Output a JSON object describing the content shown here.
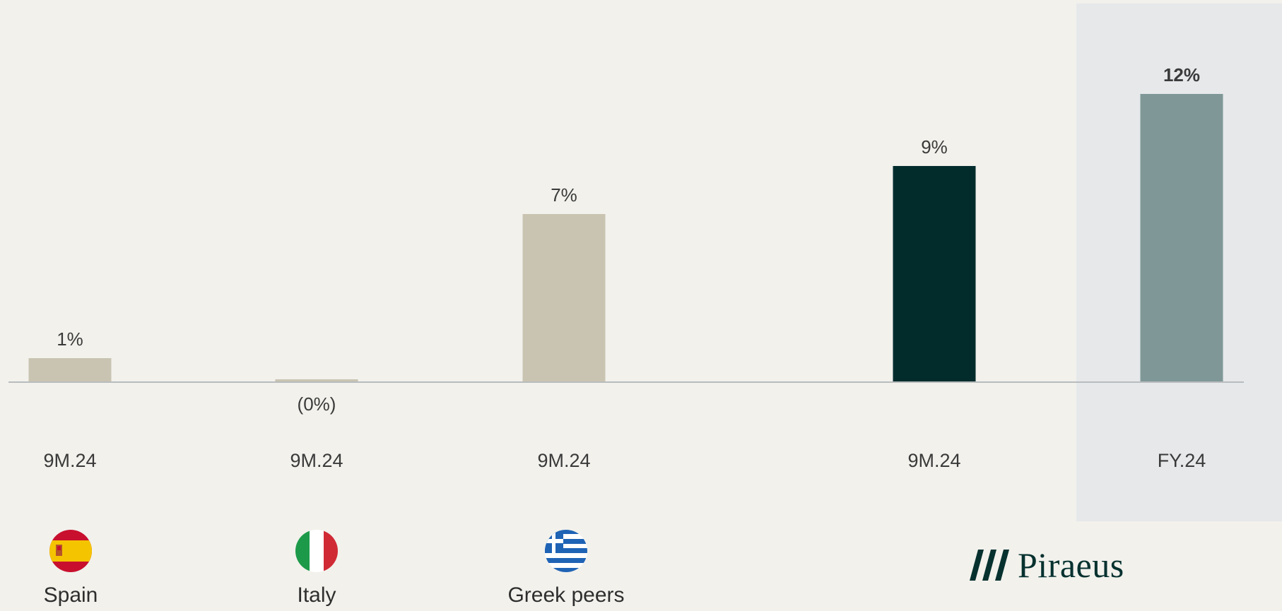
{
  "chart_data": {
    "type": "bar",
    "categories": [
      "Spain",
      "Italy",
      "Greek peers",
      "",
      ""
    ],
    "periods": [
      "9M.24",
      "9M.24",
      "9M.24",
      "9M.24",
      "FY.24"
    ],
    "values": [
      1,
      -0.1,
      7,
      9,
      12
    ],
    "value_labels": [
      "1%",
      "(0%)",
      "7%",
      "9%",
      "12%"
    ],
    "bar_colors": [
      "#c9c4b1",
      "#c9c4b1",
      "#c9c4b1",
      "#022c2c",
      "#7f9797"
    ],
    "highlight_background": "#e6e8ea",
    "grid": false,
    "legend": "none"
  },
  "groups": [
    {
      "label": "Spain",
      "flag": "spain-flag-icon"
    },
    {
      "label": "Italy",
      "flag": "italy-flag-icon"
    },
    {
      "label": "Greek peers",
      "flag": "greece-flag-icon"
    }
  ],
  "brand": {
    "name": "Piraeus",
    "color": "#06312f"
  }
}
